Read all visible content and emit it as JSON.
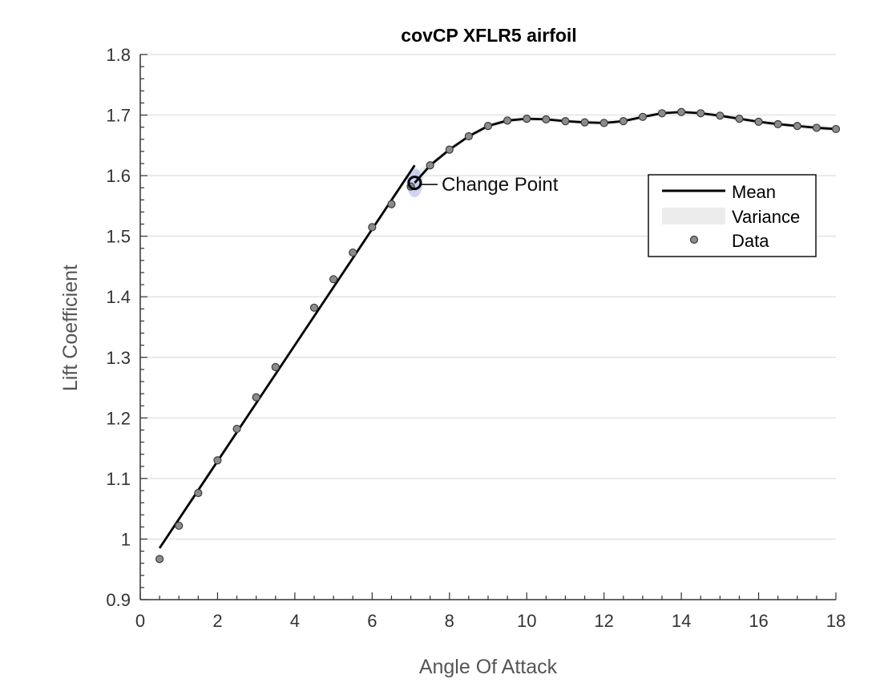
{
  "chart_data": {
    "type": "line",
    "title": "covCP XFLR5 airfoil",
    "xlabel": "Angle Of Attack",
    "ylabel": "Lift Coefficient",
    "xlim": [
      0,
      18
    ],
    "ylim": [
      0.9,
      1.8
    ],
    "xticks": [
      "0",
      "2",
      "4",
      "6",
      "8",
      "10",
      "12",
      "14",
      "16",
      "18"
    ],
    "yticks": [
      "0.9",
      "1",
      "1.1",
      "1.2",
      "1.3",
      "1.4",
      "1.5",
      "1.6",
      "1.7",
      "1.8"
    ],
    "grid": "horizontal",
    "legend_position": "right",
    "legend": {
      "mean": "Mean",
      "variance": "Variance",
      "data": "Data"
    },
    "annotation": {
      "text": "Change Point",
      "x": 7.1,
      "y": 1.588
    },
    "series": [
      {
        "name": "Mean",
        "segments": [
          {
            "x": [
              0.5,
              7.1
            ],
            "y": [
              0.985,
              1.617
            ]
          },
          {
            "x": [
              7.1,
              7.5,
              8.0,
              8.5,
              9.0,
              9.5,
              10.0,
              10.5,
              11.0,
              11.5,
              12.0,
              12.5,
              13.0,
              13.5,
              14.0,
              14.5,
              15.0,
              15.5,
              16.0,
              16.5,
              17.0,
              17.5,
              18.0
            ],
            "y": [
              1.588,
              1.617,
              1.643,
              1.665,
              1.682,
              1.691,
              1.694,
              1.693,
              1.69,
              1.688,
              1.687,
              1.69,
              1.697,
              1.703,
              1.705,
              1.703,
              1.699,
              1.694,
              1.689,
              1.685,
              1.682,
              1.679,
              1.677
            ]
          }
        ]
      },
      {
        "name": "Data",
        "x": [
          0.5,
          1.0,
          1.5,
          2.0,
          2.5,
          3.0,
          3.5,
          4.5,
          5.0,
          5.5,
          6.0,
          6.5,
          7.0,
          7.5,
          8.0,
          8.5,
          9.0,
          9.5,
          10.0,
          10.5,
          11.0,
          11.5,
          12.0,
          12.5,
          13.0,
          13.5,
          14.0,
          14.5,
          15.0,
          15.5,
          16.0,
          16.5,
          17.0,
          17.5,
          18.0
        ],
        "y": [
          0.967,
          1.022,
          1.076,
          1.13,
          1.182,
          1.234,
          1.284,
          1.382,
          1.429,
          1.473,
          1.515,
          1.553,
          1.582,
          1.617,
          1.643,
          1.665,
          1.682,
          1.691,
          1.694,
          1.693,
          1.69,
          1.688,
          1.687,
          1.69,
          1.697,
          1.703,
          1.705,
          1.703,
          1.699,
          1.694,
          1.689,
          1.685,
          1.682,
          1.679,
          1.677
        ]
      }
    ],
    "colors": {
      "mean": "#000000",
      "variance": "#ececec",
      "variance_near_change": "#aab0e6",
      "data_fill": "#8c8c8c",
      "data_stroke": "#3a3a3a",
      "grid": "#e3e3e3",
      "axis": "#333333"
    }
  }
}
